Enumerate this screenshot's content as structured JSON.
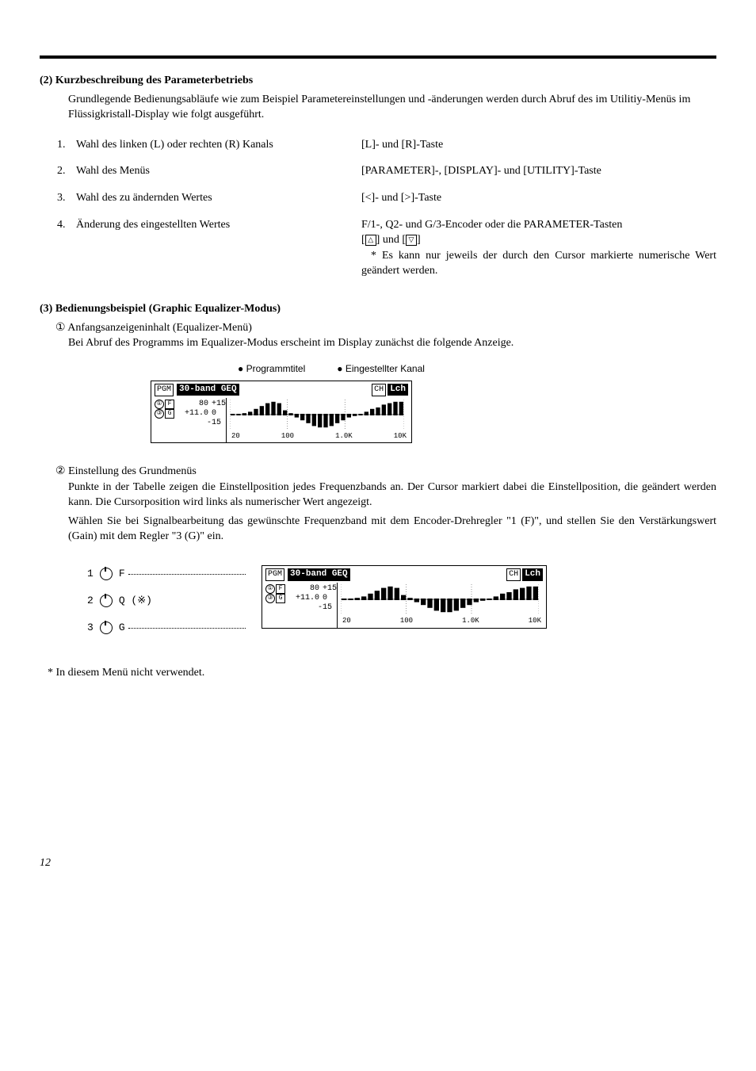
{
  "section2": {
    "head": "(2) Kurzbeschreibung des Parameterbetriebs",
    "intro": "Grundlegende Bedienungsabläufe wie zum Beispiel Parametereinstellungen und -änderungen werden durch Abruf des im Utilitiy-Menüs im Flüssigkristall-Display wie folgt ausgeführt.",
    "rows": [
      {
        "n": "1.",
        "l": "Wahl des linken (L) oder rechten (R) Kanals",
        "r": "[L]- und [R]-Taste"
      },
      {
        "n": "2.",
        "l": "Wahl des Menüs",
        "r": "[PARAMETER]-, [DISPLAY]- und [UTILITY]-Taste"
      },
      {
        "n": "3.",
        "l": "Wahl des zu ändernden Wertes",
        "r": "[<]- und [>]-Taste"
      },
      {
        "n": "4.",
        "l": "Änderung des eingestellten Wertes",
        "r": "F/1-, Q2- und G/3-Encoder oder die PARAMETER-Tasten"
      }
    ],
    "row4_line2_pre": "[",
    "row4_line2_mid": "] und [",
    "row4_line2_post": "]",
    "row4_note": "* Es kann nur jeweils der durch den Cursor markierte numerische Wert geändert werden."
  },
  "section3": {
    "head": "(3) Bedienungsbeispiel (Graphic Equalizer-Modus)",
    "sub1_num": "①",
    "sub1_title": " Anfangsanzeigeninhalt (Equalizer-Menü)",
    "sub1_body": "Bei Abruf des Programms im Equalizer-Modus erscheint im Display zunächst die folgende Anzeige.",
    "bullets": {
      "a": "● Programmtitel",
      "b": "● Eingestellter Kanal"
    },
    "sub2_num": "②",
    "sub2_title": " Einstellung des Grundmenüs",
    "sub2_p1": "Punkte in der Tabelle zeigen die Einstellposition jedes Frequenzbands an. Der Cursor markiert dabei die Einstellposition, die geändert werden kann. Die Cursorposition wird links als numerischer Wert angezeigt.",
    "sub2_p2": "Wählen Sie bei Signalbearbeitung das gewünschte Frequenzband mit dem Encoder-Drehregler \"1 (F)\", und stellen Sie den Verstärkungswert (Gain) mit dem Regler \"3 (G)\" ein."
  },
  "lcd": {
    "pgm_label": "PGM",
    "title": "30-band GEQ",
    "ch_label": "CH",
    "ch_value": "Lch",
    "left_rows": [
      {
        "c": "①",
        "s": "F",
        "v": "80",
        "scale": "+15"
      },
      {
        "c": "③",
        "s": "G",
        "v": "+11.0",
        "scale": "0"
      },
      {
        "c": "",
        "s": "",
        "v": "",
        "scale": "-15"
      }
    ],
    "axis": [
      "20",
      "100",
      "1.0K",
      "10K"
    ]
  },
  "graph": {
    "bars_up": [
      0,
      0,
      1,
      2,
      4,
      6,
      8,
      9,
      8,
      3,
      1,
      0,
      0,
      0,
      0,
      0,
      0,
      0,
      0,
      0,
      0,
      0,
      0,
      2,
      4,
      5,
      7,
      8,
      9,
      9
    ],
    "bars_down": [
      0,
      0,
      0,
      0,
      0,
      0,
      0,
      0,
      0,
      0,
      0,
      2,
      4,
      6,
      8,
      9,
      9,
      8,
      6,
      4,
      2,
      1,
      0,
      0,
      0,
      0,
      0,
      0,
      0,
      0
    ]
  },
  "encoders": [
    {
      "n": "1",
      "lbl": "F"
    },
    {
      "n": "2",
      "lbl": "Q  (※)"
    },
    {
      "n": "3",
      "lbl": "G"
    }
  ],
  "footnote": "*   In diesem Menü nicht verwendet.",
  "pageno": "12"
}
